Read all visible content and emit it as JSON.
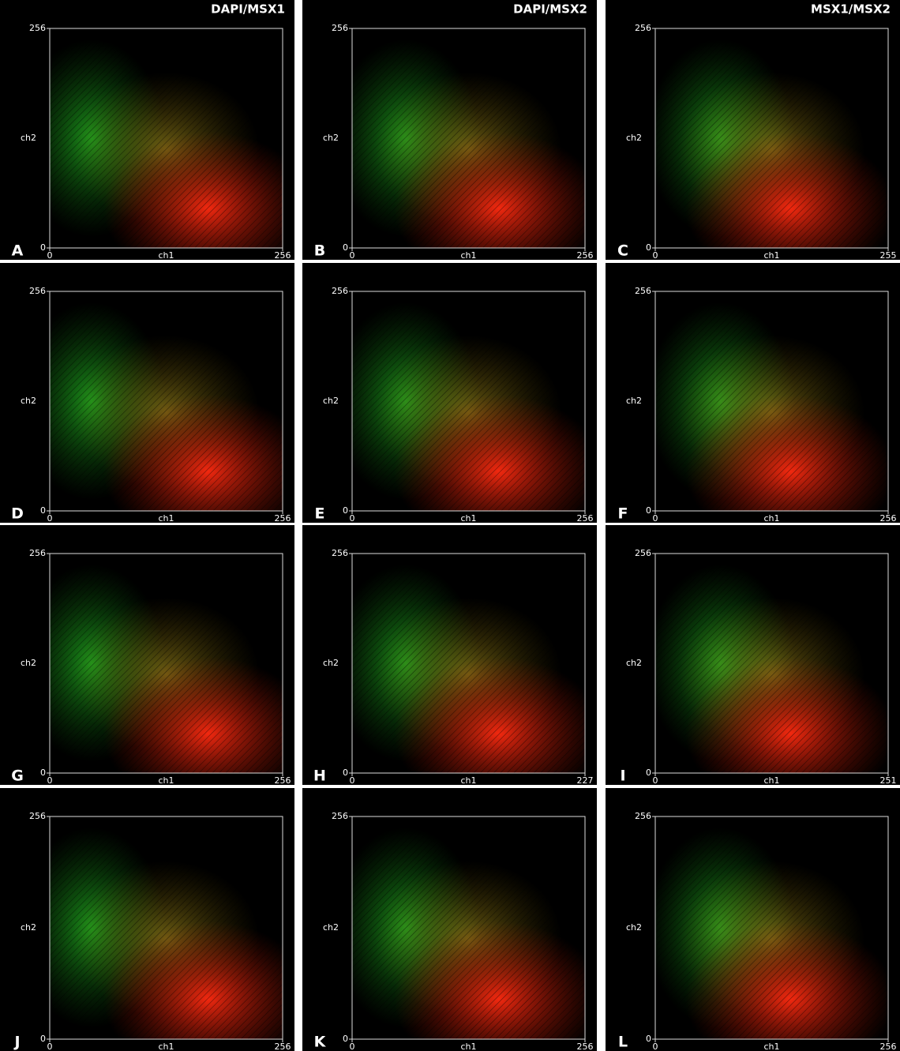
{
  "chart_data": [
    {
      "type": "scatter",
      "label": "A",
      "title": "DAPI/MSX1",
      "xlabel": "ch1",
      "ylabel": "ch2",
      "xlim": [
        0,
        256
      ],
      "ylim": [
        0,
        256
      ],
      "xticks": [
        0,
        256
      ],
      "yticks": [
        0,
        256
      ]
    },
    {
      "type": "scatter",
      "label": "B",
      "title": "DAPI/MSX2",
      "xlabel": "ch1",
      "ylabel": "ch2",
      "xlim": [
        0,
        256
      ],
      "ylim": [
        0,
        256
      ],
      "xticks": [
        0,
        256
      ],
      "yticks": [
        0,
        256
      ]
    },
    {
      "type": "scatter",
      "label": "C",
      "title": "MSX1/MSX2",
      "xlabel": "ch1",
      "ylabel": "ch2",
      "xlim": [
        0,
        255
      ],
      "ylim": [
        0,
        256
      ],
      "xticks": [
        0,
        255
      ],
      "yticks": [
        0,
        256
      ]
    },
    {
      "type": "scatter",
      "label": "D",
      "xlabel": "ch1",
      "ylabel": "ch2",
      "xlim": [
        0,
        256
      ],
      "ylim": [
        0,
        256
      ],
      "xticks": [
        0,
        256
      ],
      "yticks": [
        0,
        256
      ]
    },
    {
      "type": "scatter",
      "label": "E",
      "xlabel": "ch1",
      "ylabel": "ch2",
      "xlim": [
        0,
        256
      ],
      "ylim": [
        0,
        256
      ],
      "xticks": [
        0,
        256
      ],
      "yticks": [
        0,
        256
      ]
    },
    {
      "type": "scatter",
      "label": "F",
      "xlabel": "ch1",
      "ylabel": "ch2",
      "xlim": [
        0,
        256
      ],
      "ylim": [
        0,
        256
      ],
      "xticks": [
        0,
        256
      ],
      "yticks": [
        0,
        256
      ]
    },
    {
      "type": "scatter",
      "label": "G",
      "xlabel": "ch1",
      "ylabel": "ch2",
      "xlim": [
        0,
        256
      ],
      "ylim": [
        0,
        256
      ],
      "xticks": [
        0,
        256
      ],
      "yticks": [
        0,
        256
      ]
    },
    {
      "type": "scatter",
      "label": "H",
      "xlabel": "ch1",
      "ylabel": "ch2",
      "xlim": [
        0,
        227
      ],
      "ylim": [
        0,
        256
      ],
      "xticks": [
        0,
        227
      ],
      "yticks": [
        0,
        256
      ]
    },
    {
      "type": "scatter",
      "label": "I",
      "xlabel": "ch1",
      "ylabel": "ch2",
      "xlim": [
        0,
        251
      ],
      "ylim": [
        0,
        256
      ],
      "xticks": [
        0,
        251
      ],
      "yticks": [
        0,
        256
      ]
    },
    {
      "type": "scatter",
      "label": "J",
      "xlabel": "ch1",
      "ylabel": "ch2",
      "xlim": [
        0,
        256
      ],
      "ylim": [
        0,
        256
      ],
      "xticks": [
        0,
        256
      ],
      "yticks": [
        0,
        256
      ]
    },
    {
      "type": "scatter",
      "label": "K",
      "xlabel": "ch1",
      "ylabel": "ch2",
      "xlim": [
        0,
        256
      ],
      "ylim": [
        0,
        256
      ],
      "xticks": [
        0,
        256
      ],
      "yticks": [
        0,
        256
      ]
    },
    {
      "type": "scatter",
      "label": "L",
      "xlabel": "ch1",
      "ylabel": "ch2",
      "xlim": [
        0,
        256
      ],
      "ylim": [
        0,
        256
      ],
      "xticks": [
        0,
        256
      ],
      "yticks": [
        0,
        256
      ]
    }
  ]
}
